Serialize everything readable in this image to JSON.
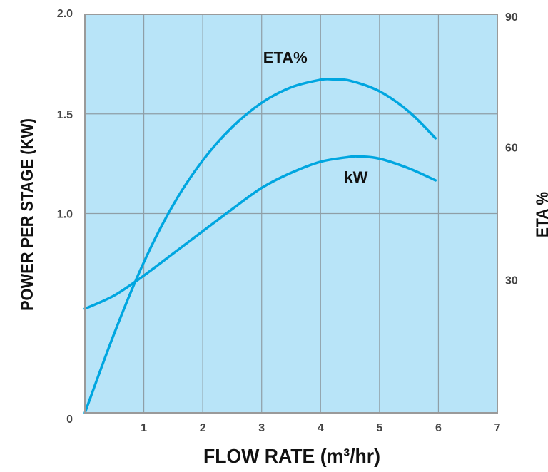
{
  "chart_data": {
    "type": "line",
    "xlabel": "FLOW RATE (m³/hr)",
    "ylabel_left": "POWER PER STAGE (KW)",
    "ylabel_right": "ETA %",
    "x_ticks": [
      "1",
      "2",
      "3",
      "4",
      "5",
      "6",
      "7"
    ],
    "x_tick_values": [
      1,
      2,
      3,
      4,
      5,
      6,
      7
    ],
    "y_left_ticks": [
      "0",
      "1.0",
      "1.5",
      "2.0"
    ],
    "y_left_tick_positions": [
      0.0,
      0.5,
      0.75,
      1.0
    ],
    "y_right_ticks": [
      "30",
      "60",
      "90"
    ],
    "y_right_tick_values": [
      30,
      60,
      90
    ],
    "xlim": [
      0,
      7
    ],
    "y_right_lim": [
      0,
      90
    ],
    "grid": true,
    "plot_background": "#b8e4f8",
    "series": [
      {
        "name": "ETA%",
        "axis": "right",
        "color": "#00a6e0",
        "x": [
          0.0,
          0.5,
          1.0,
          1.5,
          2.0,
          2.5,
          3.0,
          3.5,
          4.0,
          4.2,
          4.5,
          5.0,
          5.5,
          5.95
        ],
        "values": [
          0.0,
          18.0,
          34.0,
          47.0,
          57.0,
          64.5,
          70.0,
          73.5,
          75.2,
          75.3,
          75.0,
          72.6,
          68.0,
          62.0
        ],
        "label_at": [
          3.4,
          79.0
        ]
      },
      {
        "name": "kW",
        "axis": "right",
        "color": "#00a6e0",
        "x": [
          0.0,
          0.5,
          1.0,
          1.5,
          2.0,
          2.5,
          3.0,
          3.5,
          4.0,
          4.5,
          4.65,
          5.0,
          5.5,
          5.95
        ],
        "values": [
          23.5,
          26.5,
          31.0,
          36.0,
          41.0,
          46.0,
          50.8,
          54.2,
          56.7,
          57.8,
          57.9,
          57.4,
          55.2,
          52.5
        ],
        "label_at": [
          4.6,
          52.0
        ]
      }
    ]
  }
}
